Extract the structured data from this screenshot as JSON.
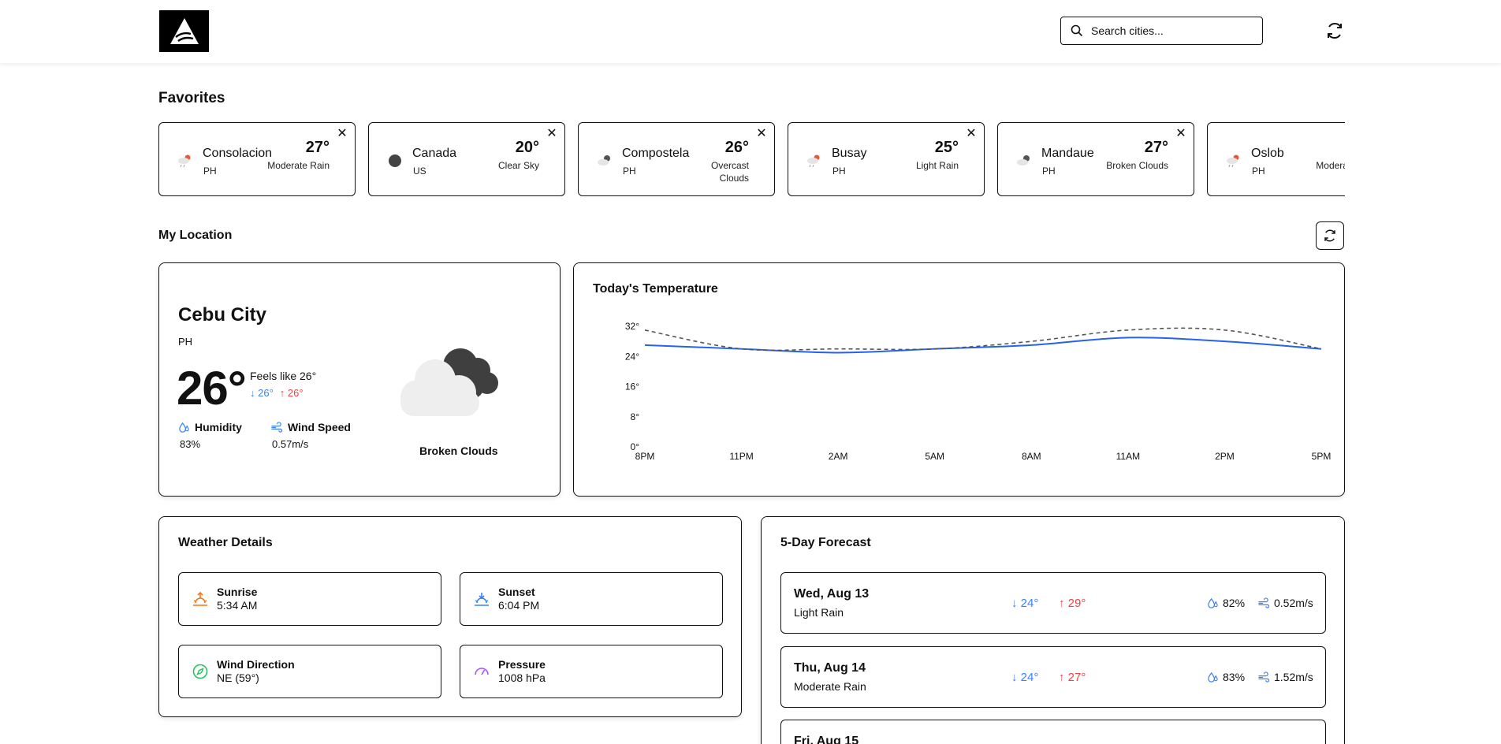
{
  "header": {
    "search_placeholder": "Search cities..."
  },
  "favorites": {
    "title": "Favorites",
    "items": [
      {
        "city": "Consolacion",
        "country": "PH",
        "temp": "27°",
        "desc": "Moderate Rain",
        "icon": "rain-cloud-icon"
      },
      {
        "city": "Canada",
        "country": "US",
        "temp": "20°",
        "desc": "Clear Sky",
        "icon": "moon-icon"
      },
      {
        "city": "Compostela",
        "country": "PH",
        "temp": "26°",
        "desc": "Overcast Clouds",
        "icon": "clouds-icon"
      },
      {
        "city": "Busay",
        "country": "PH",
        "temp": "25°",
        "desc": "Light Rain",
        "icon": "rain-cloud-icon"
      },
      {
        "city": "Mandaue",
        "country": "PH",
        "temp": "27°",
        "desc": "Broken Clouds",
        "icon": "clouds-icon"
      },
      {
        "city": "Oslob",
        "country": "PH",
        "temp": "",
        "desc": "Moderate Rain",
        "icon": "rain-cloud-icon"
      }
    ]
  },
  "location": {
    "title": "My Location",
    "city": "Cebu City",
    "country": "PH",
    "temp": "26°",
    "feels_like": "Feels like 26°",
    "min": "↓ 26°",
    "max": "↑ 26°",
    "humidity_label": "Humidity",
    "humidity_value": "83%",
    "wind_label": "Wind Speed",
    "wind_value": "0.57m/s",
    "condition": "Broken Clouds"
  },
  "chart_data": {
    "type": "line",
    "title": "Today's Temperature",
    "categories": [
      "8PM",
      "11PM",
      "2AM",
      "5AM",
      "8AM",
      "11AM",
      "2PM",
      "5PM"
    ],
    "y_ticks": [
      "0°",
      "8°",
      "16°",
      "24°",
      "32°"
    ],
    "ylim": [
      0,
      32
    ],
    "grid": false,
    "series": [
      {
        "name": "",
        "style": "solid",
        "color": "#2563eb",
        "values": [
          27,
          26,
          25,
          26,
          27,
          29,
          28,
          26
        ]
      },
      {
        "name": "",
        "style": "dashed",
        "color": "#555555",
        "values": [
          31,
          26,
          26,
          26,
          28,
          31,
          31,
          26
        ]
      }
    ]
  },
  "details": {
    "title": "Weather Details",
    "items": [
      {
        "label": "Sunrise",
        "value": "5:34 AM",
        "icon": "sunrise-icon"
      },
      {
        "label": "Sunset",
        "value": "6:04 PM",
        "icon": "sunset-icon"
      },
      {
        "label": "Wind Direction",
        "value": "NE (59°)",
        "icon": "compass-icon"
      },
      {
        "label": "Pressure",
        "value": "1008 hPa",
        "icon": "gauge-icon"
      }
    ]
  },
  "forecast": {
    "title": "5-Day Forecast",
    "days": [
      {
        "date": "Wed, Aug 13",
        "desc": "Light Rain",
        "lo": "↓ 24°",
        "hi": "↑ 29°",
        "humidity": "82%",
        "wind": "0.52m/s"
      },
      {
        "date": "Thu, Aug 14",
        "desc": "Moderate Rain",
        "lo": "↓ 24°",
        "hi": "↑ 27°",
        "humidity": "83%",
        "wind": "1.52m/s"
      },
      {
        "date": "Fri, Aug 15",
        "desc": "",
        "lo": "",
        "hi": "",
        "humidity": "",
        "wind": ""
      }
    ]
  },
  "colors": {
    "accent_blue": "#3b82f6",
    "accent_red": "#ef4444",
    "sunrise_orange": "#f97316",
    "sunset_blue": "#3b82f6",
    "compass_green": "#22c55e",
    "gauge_purple": "#a855f7"
  }
}
